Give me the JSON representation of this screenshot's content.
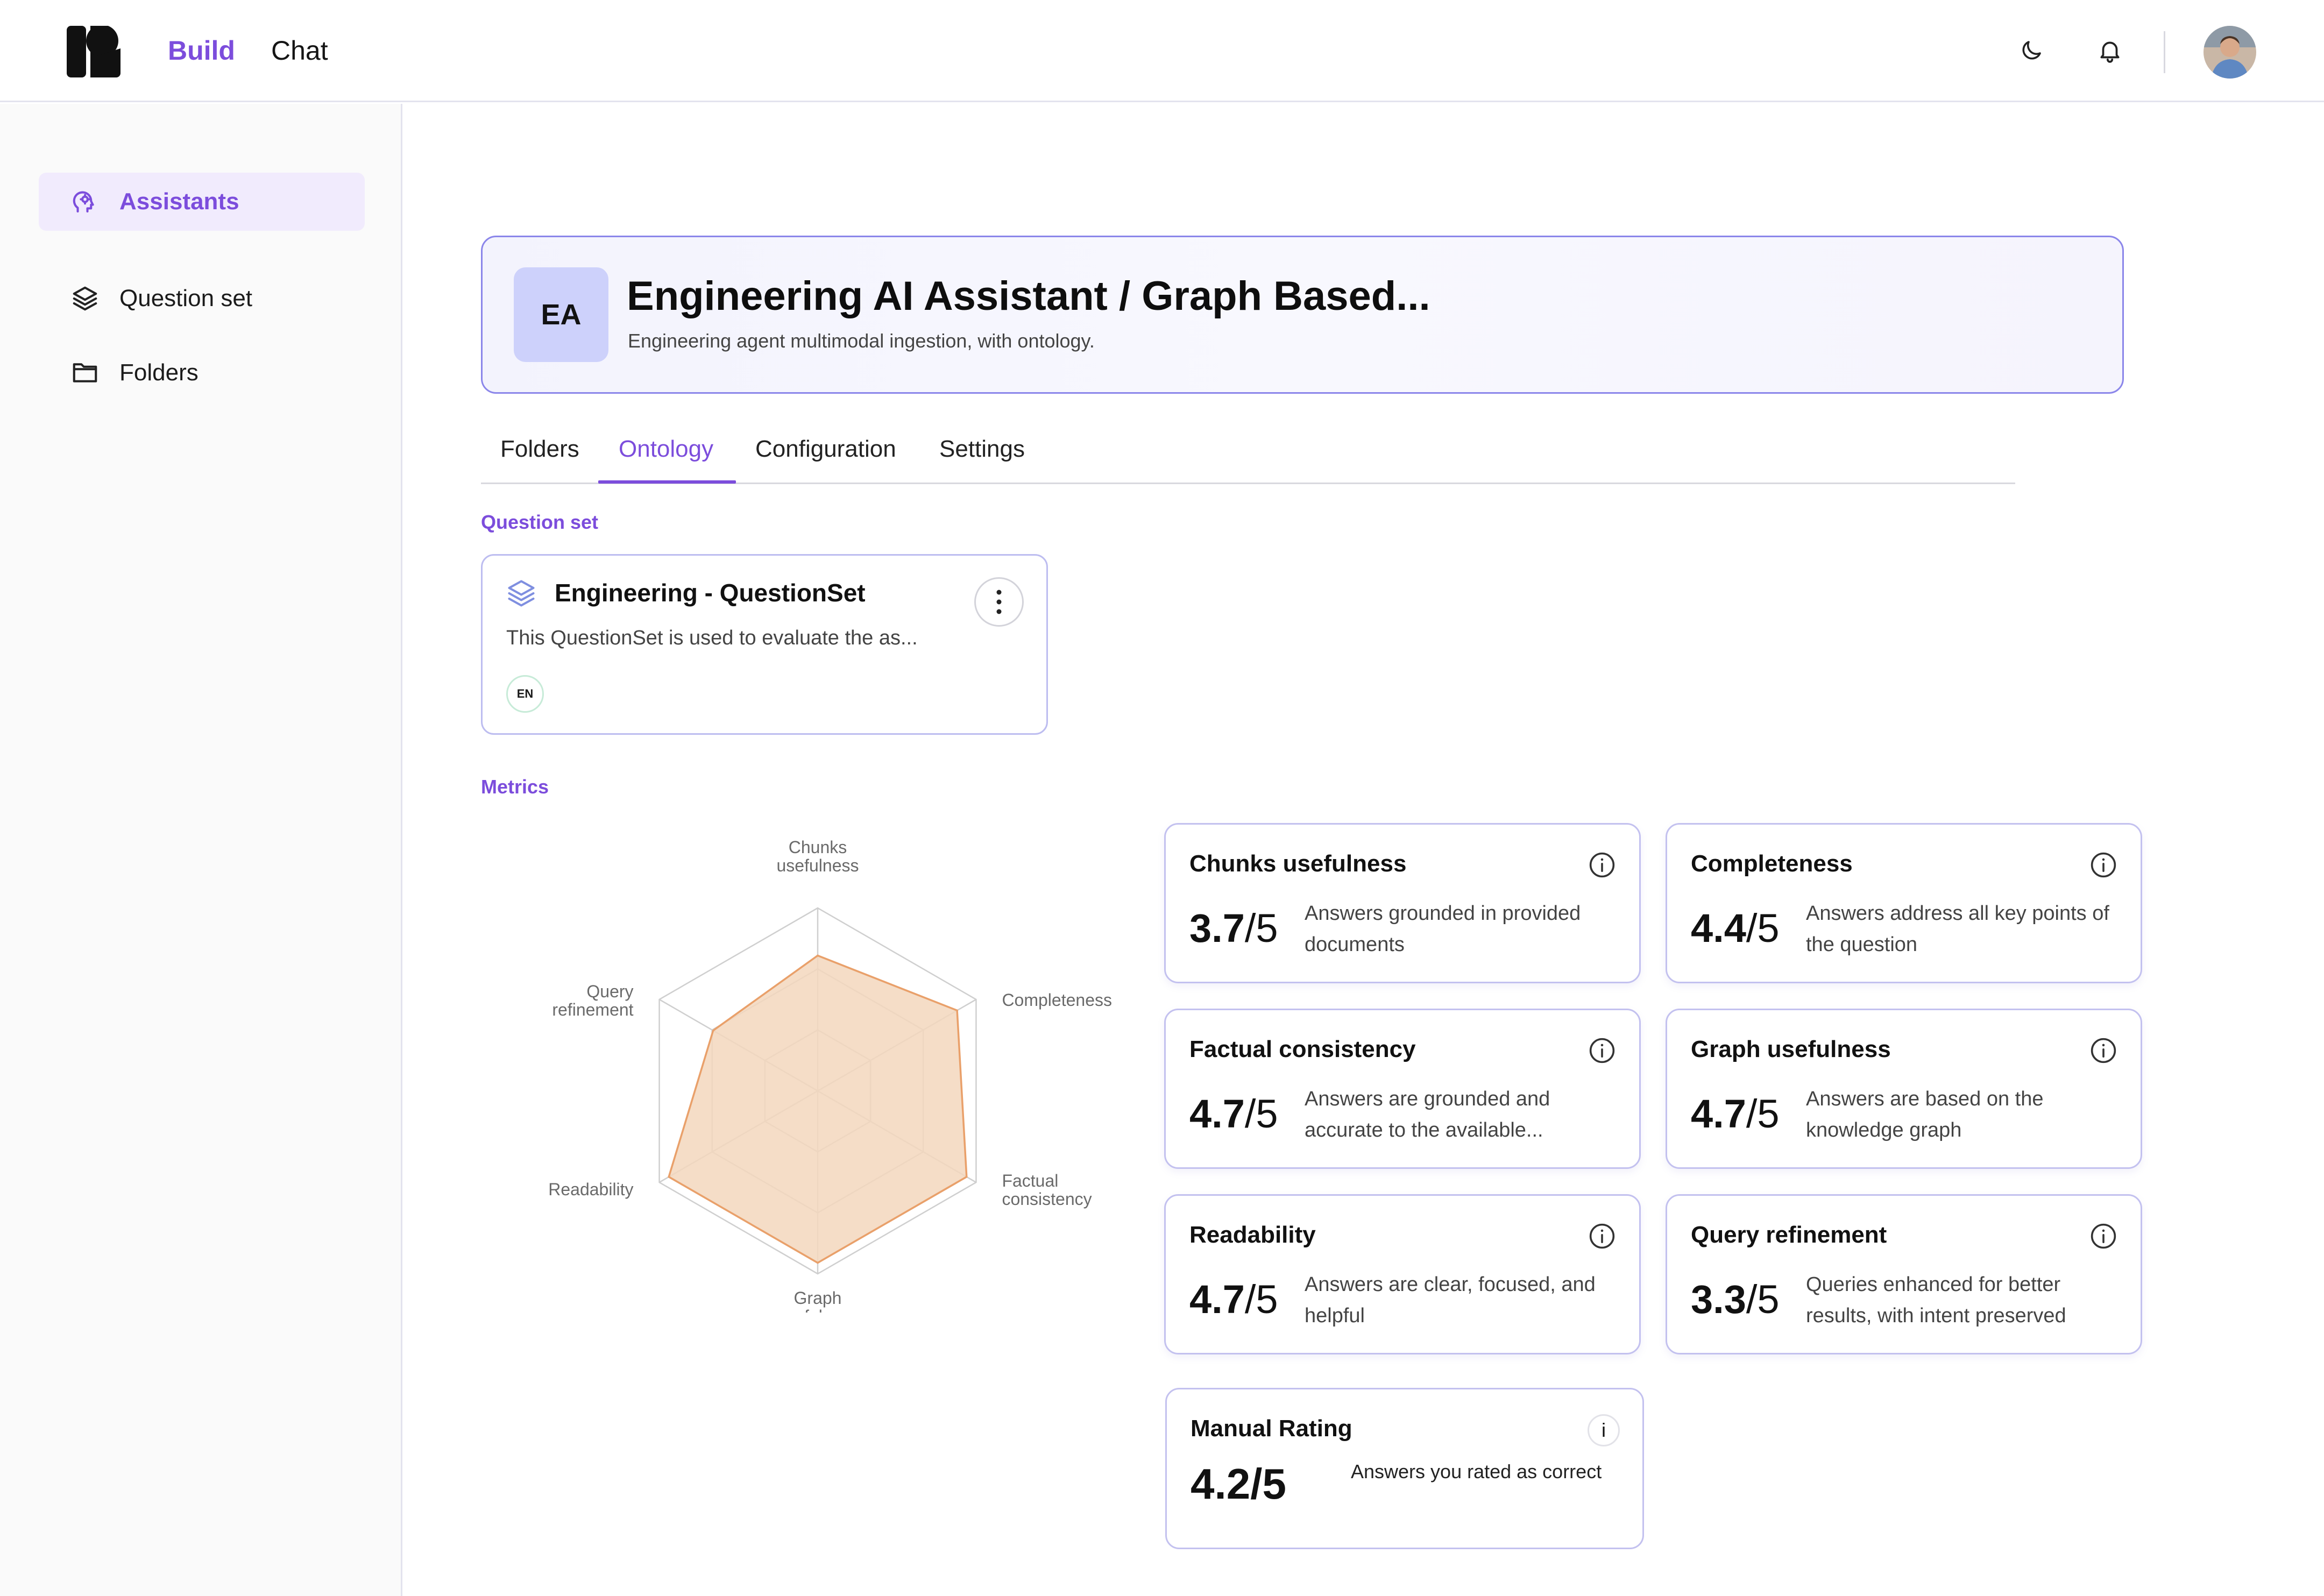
{
  "header": {
    "nav_build": "Build",
    "nav_chat": "Chat",
    "icons": [
      "logo-icon",
      "moon-icon",
      "bell-icon",
      "avatar"
    ]
  },
  "sidebar": {
    "items": [
      {
        "label": "Assistants",
        "icon": "assistant-head-icon",
        "active": true
      },
      {
        "label": "Question set",
        "icon": "layers-icon",
        "active": false
      },
      {
        "label": "Folders",
        "icon": "folder-icon",
        "active": false
      }
    ]
  },
  "assistant": {
    "initials": "EA",
    "title": "Engineering AI Assistant / Graph Based...",
    "subtitle": "Engineering agent multimodal ingestion, with ontology."
  },
  "tabs": [
    {
      "label": "Folders",
      "active": false
    },
    {
      "label": "Ontology",
      "active": true
    },
    {
      "label": "Configuration",
      "active": false
    },
    {
      "label": "Settings",
      "active": false
    }
  ],
  "question_set": {
    "section_label": "Question set",
    "title": "Engineering - QuestionSet",
    "description": "This QuestionSet is used to evaluate the as...",
    "language_badge": "EN"
  },
  "metrics": {
    "section_label": "Metrics",
    "cards": [
      {
        "title": "Chunks usefulness",
        "score": "3.7",
        "max": "/5",
        "description": "Answers grounded in provided documents"
      },
      {
        "title": "Completeness",
        "score": "4.4",
        "max": "/5",
        "description": "Answers address all key points of the question"
      },
      {
        "title": "Factual consistency",
        "score": "4.7",
        "max": "/5",
        "description": "Answers are grounded and accurate to the available..."
      },
      {
        "title": "Graph usefulness",
        "score": "4.7",
        "max": "/5",
        "description": "Answers are based on the knowledge graph"
      },
      {
        "title": "Readability",
        "score": "4.7",
        "max": "/5",
        "description": "Answers are clear, focused, and helpful"
      },
      {
        "title": "Query refinement",
        "score": "3.3",
        "max": "/5",
        "description": "Queries enhanced for better results, with intent preserved"
      }
    ],
    "manual": {
      "title": "Manual Rating",
      "score": "4.2/5",
      "description": "Answers you rated as correct",
      "info": "i"
    }
  },
  "chart_data": {
    "type": "radar",
    "axes": [
      {
        "line1": "Chunks",
        "line2": "usefulness"
      },
      {
        "line1": "Completeness",
        "line2": ""
      },
      {
        "line1": "Factual",
        "line2": "consistency"
      },
      {
        "line1": "Graph",
        "line2": "usefulness"
      },
      {
        "line1": "Readability",
        "line2": ""
      },
      {
        "line1": "Query",
        "line2": "refinement"
      }
    ],
    "values": [
      3.7,
      4.4,
      4.7,
      4.7,
      4.7,
      3.3
    ],
    "max": 5,
    "rings": 3,
    "fill_color": "#f3d7bd",
    "stroke_color": "#e9a06a",
    "grid_color": "#cfcfcf"
  }
}
